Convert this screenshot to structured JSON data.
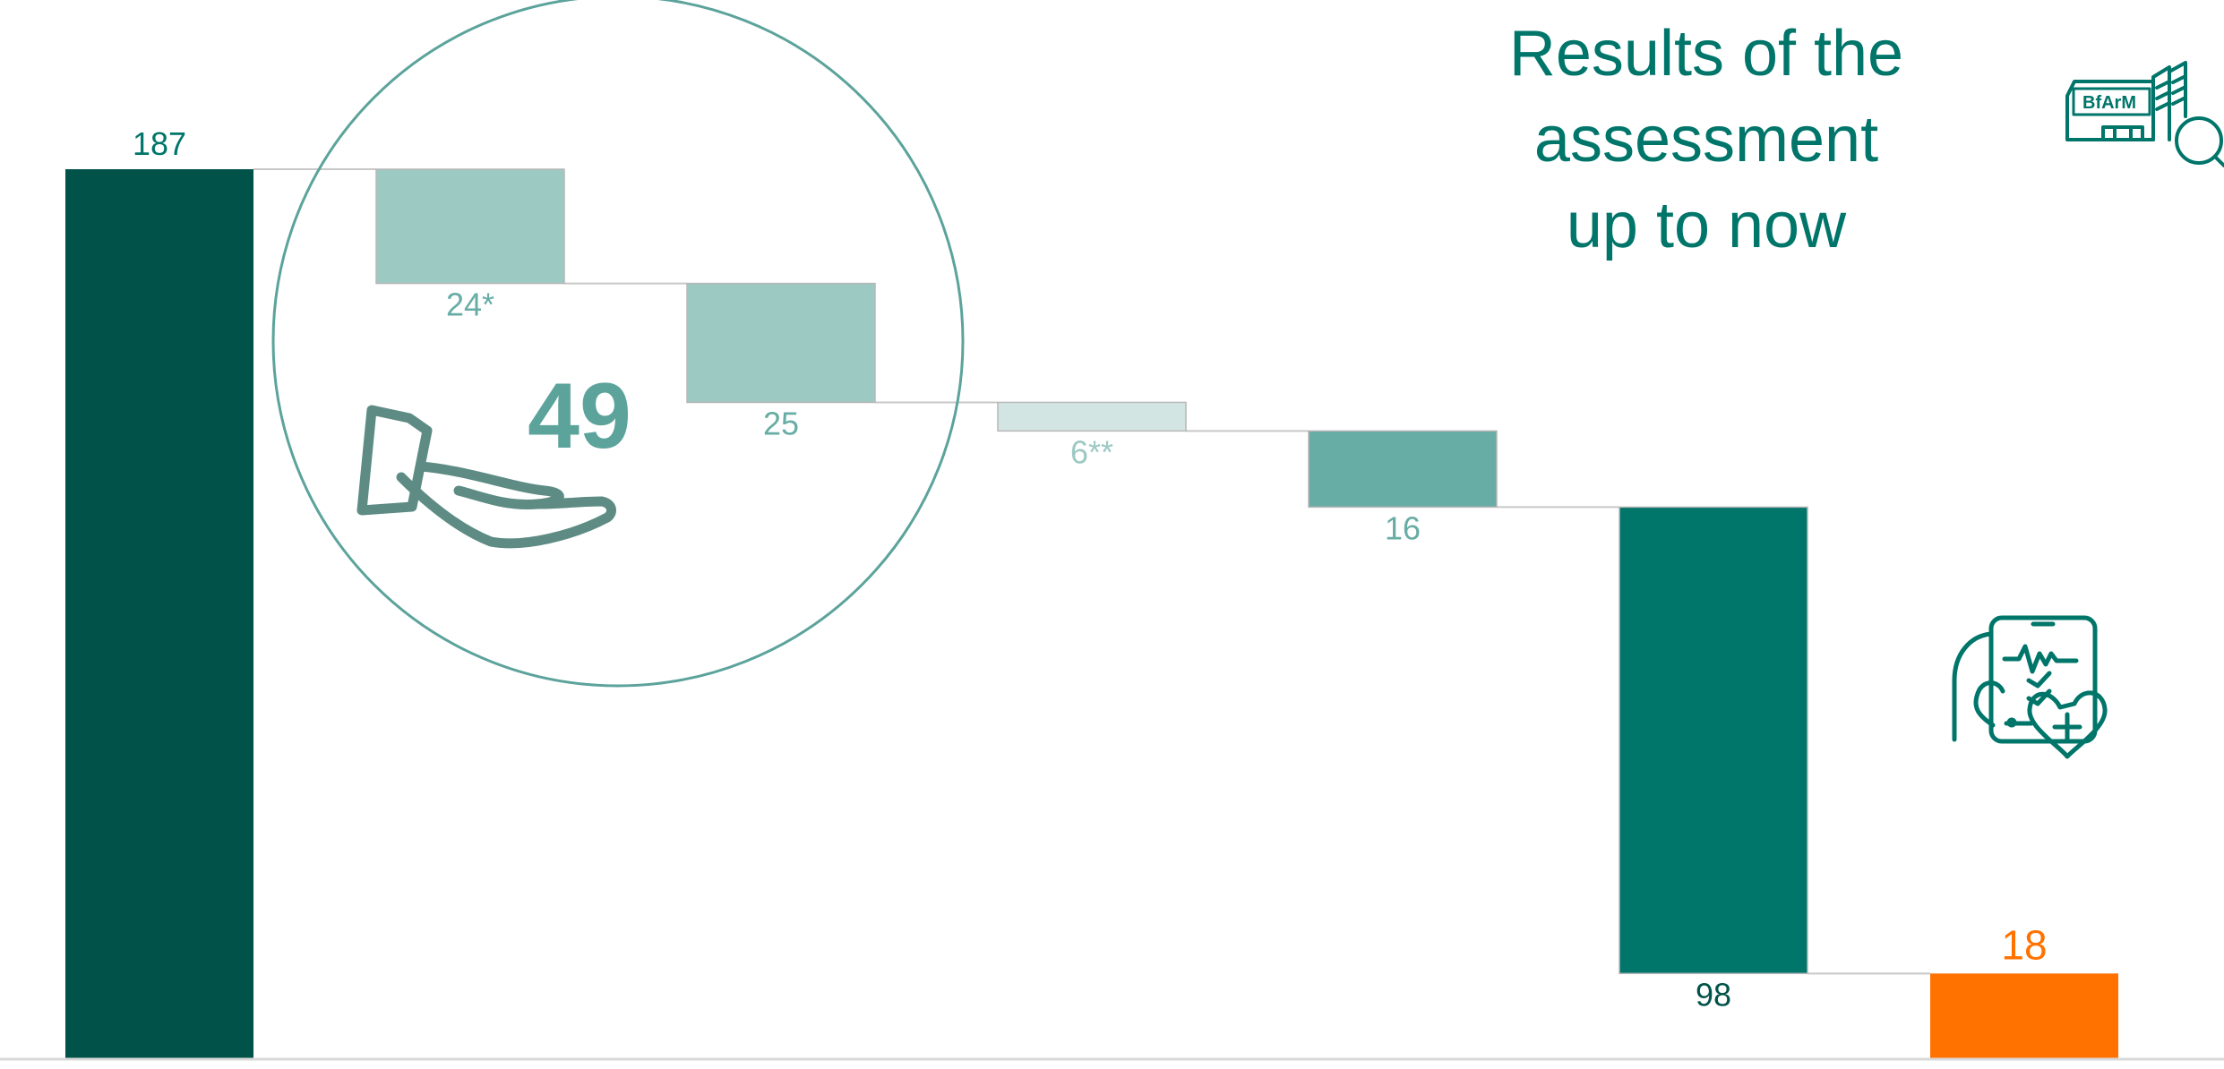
{
  "title_lines": [
    "Results of the",
    "assessment",
    "up to now"
  ],
  "circle_label": "49",
  "logo_text": "BfArM",
  "icons": {
    "building": "building-magnifier-icon",
    "hand": "open-hand-icon",
    "app": "phone-health-app-icon"
  },
  "colors": {
    "dark": "#015249",
    "teal": "#00756a",
    "mid": "#68ada5",
    "light": "#9dc9c3",
    "pale": "#d3e5e3",
    "orange": "#ff7200",
    "circle": "#5ba39b",
    "hand": "#5e8c85",
    "connector": "#c8c8c8"
  },
  "chart_data": {
    "type": "bar",
    "subtype": "waterfall",
    "title": "",
    "xlabel": "",
    "ylabel": "",
    "ylim": [
      0,
      187
    ],
    "grid": false,
    "legend": "none",
    "bars": [
      {
        "kind": "total",
        "value": 187,
        "label": "187",
        "color": "dark",
        "label_color": "teal",
        "label_pos": "above"
      },
      {
        "kind": "decrease",
        "value": 24,
        "label": "24*",
        "color": "light",
        "label_color": "mid",
        "label_pos": "below"
      },
      {
        "kind": "decrease",
        "value": 25,
        "label": "25",
        "color": "light",
        "label_color": "mid",
        "label_pos": "below"
      },
      {
        "kind": "decrease",
        "value": 6,
        "label": "6**",
        "color": "pale",
        "label_color": "light",
        "label_pos": "below"
      },
      {
        "kind": "decrease",
        "value": 16,
        "label": "16",
        "color": "mid",
        "label_color": "mid",
        "label_pos": "below"
      },
      {
        "kind": "decrease",
        "value": 98,
        "label": "98",
        "color": "teal",
        "label_color": "dark",
        "label_pos": "below"
      },
      {
        "kind": "total",
        "value": 18,
        "label": "18",
        "color": "orange",
        "label_color": "orange",
        "label_pos": "above"
      }
    ],
    "annotations": [
      {
        "text": "49",
        "note": "sum of 24 and 25, shown inside circle"
      }
    ]
  }
}
